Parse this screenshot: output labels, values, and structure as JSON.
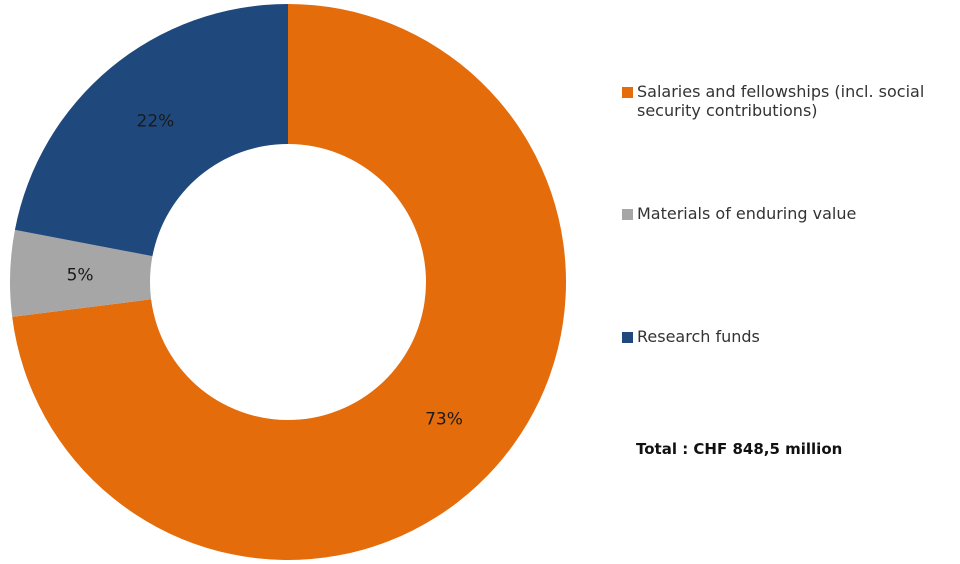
{
  "chart_data": {
    "type": "donut",
    "categories": [
      "Salaries and fellowships (incl. social security contributions)",
      "Materials of enduring value",
      "Research funds"
    ],
    "values": [
      73,
      5,
      22
    ],
    "value_labels": [
      "73%",
      "5%",
      "22%"
    ],
    "colors": [
      "#e46c0a",
      "#a6a6a6",
      "#1f497d"
    ],
    "annotation": "Total : CHF 848,5 million"
  }
}
